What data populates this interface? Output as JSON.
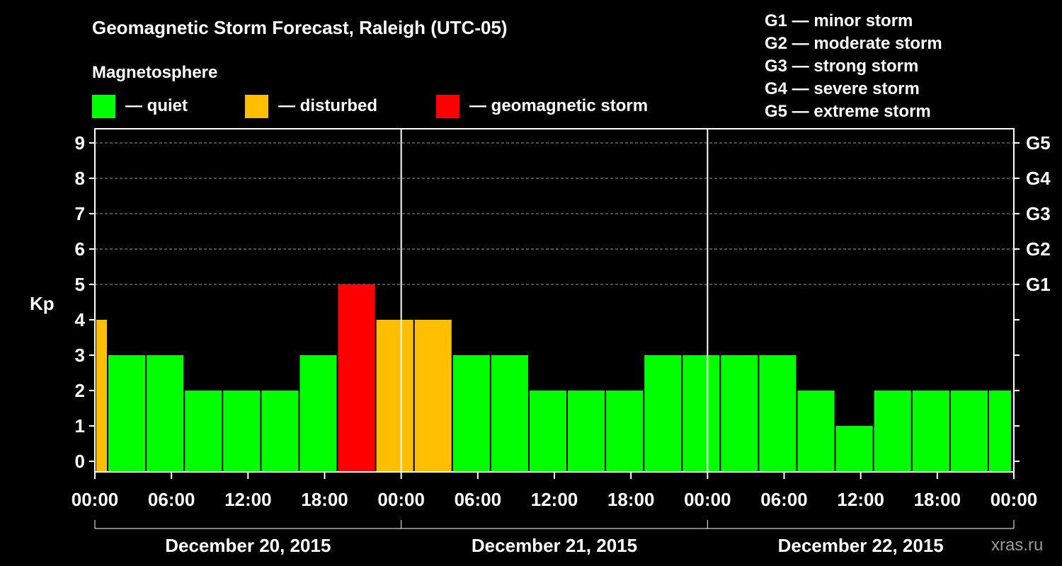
{
  "chart_data": {
    "type": "bar",
    "title": "Geomagnetic Storm Forecast, Raleigh (UTC-05)",
    "legend_title": "Magnetosphere",
    "legend": [
      {
        "label": "— quiet",
        "color": "#00ff00"
      },
      {
        "label": "— disturbed",
        "color": "#ffbf00"
      },
      {
        "label": "— geomagnetic storm",
        "color": "#ff0000"
      }
    ],
    "storm_scale": [
      "G1 — minor storm",
      "G2 — moderate storm",
      "G3 — strong storm",
      "G4 — severe storm",
      "G5 — extreme storm"
    ],
    "ylabel": "Kp",
    "ylim": [
      0,
      9
    ],
    "y_ticks": [
      "0",
      "1",
      "2",
      "3",
      "4",
      "5",
      "6",
      "7",
      "8",
      "9"
    ],
    "right_ticks": [
      {
        "kp": 5,
        "label": "G1"
      },
      {
        "kp": 6,
        "label": "G2"
      },
      {
        "kp": 7,
        "label": "G3"
      },
      {
        "kp": 8,
        "label": "G4"
      },
      {
        "kp": 9,
        "label": "G5"
      }
    ],
    "x_range_hours": [
      0,
      72
    ],
    "x_tick_hours": [
      0,
      6,
      12,
      18,
      24,
      30,
      36,
      42,
      48,
      54,
      60,
      66,
      72
    ],
    "x_tick_labels": [
      "00:00",
      "06:00",
      "12:00",
      "18:00",
      "00:00",
      "06:00",
      "12:00",
      "18:00",
      "00:00",
      "06:00",
      "12:00",
      "18:00",
      "00:00"
    ],
    "day_boundaries_hours": [
      24,
      48
    ],
    "days": [
      {
        "label": "December 20, 2015",
        "start_hour": 0,
        "end_hour": 24
      },
      {
        "label": "December 21, 2015",
        "start_hour": 24,
        "end_hour": 48
      },
      {
        "label": "December 22, 2015",
        "start_hour": 48,
        "end_hour": 72
      }
    ],
    "bars": [
      {
        "start": 0,
        "end": 1,
        "kp": 4
      },
      {
        "start": 1,
        "end": 4,
        "kp": 3
      },
      {
        "start": 4,
        "end": 7,
        "kp": 3
      },
      {
        "start": 7,
        "end": 10,
        "kp": 2
      },
      {
        "start": 10,
        "end": 13,
        "kp": 2
      },
      {
        "start": 13,
        "end": 16,
        "kp": 2
      },
      {
        "start": 16,
        "end": 19,
        "kp": 3
      },
      {
        "start": 19,
        "end": 22,
        "kp": 5
      },
      {
        "start": 22,
        "end": 25,
        "kp": 4
      },
      {
        "start": 25,
        "end": 28,
        "kp": 4
      },
      {
        "start": 28,
        "end": 31,
        "kp": 3
      },
      {
        "start": 31,
        "end": 34,
        "kp": 3
      },
      {
        "start": 34,
        "end": 37,
        "kp": 2
      },
      {
        "start": 37,
        "end": 40,
        "kp": 2
      },
      {
        "start": 40,
        "end": 43,
        "kp": 2
      },
      {
        "start": 43,
        "end": 46,
        "kp": 3
      },
      {
        "start": 46,
        "end": 49,
        "kp": 3
      },
      {
        "start": 49,
        "end": 52,
        "kp": 3
      },
      {
        "start": 52,
        "end": 55,
        "kp": 3
      },
      {
        "start": 55,
        "end": 58,
        "kp": 2
      },
      {
        "start": 58,
        "end": 61,
        "kp": 1
      },
      {
        "start": 61,
        "end": 64,
        "kp": 2
      },
      {
        "start": 64,
        "end": 67,
        "kp": 2
      },
      {
        "start": 67,
        "end": 70,
        "kp": 2
      },
      {
        "start": 70,
        "end": 72,
        "kp": 2
      }
    ],
    "colors": {
      "quiet": "#00ff00",
      "disturbed": "#ffbf00",
      "storm": "#ff0000",
      "background": "#000000",
      "foreground": "#ffffff",
      "grid": "#9a9a9a"
    },
    "credit": "xras.ru"
  }
}
